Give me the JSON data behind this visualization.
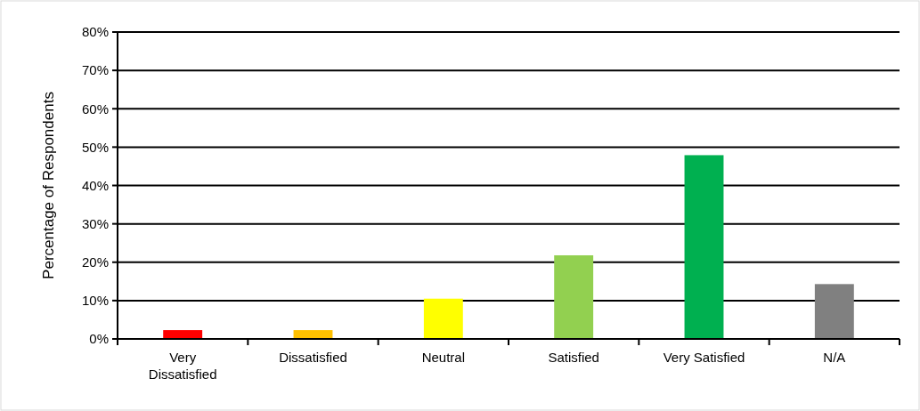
{
  "chart_data": {
    "type": "bar",
    "ylabel": "Percentage of Respondents",
    "categories": [
      "Very Dissatisfied",
      "Dissatisfied",
      "Neutral",
      "Satisfied",
      "Very Satisfied",
      "N/A"
    ],
    "values": [
      2.3,
      2.3,
      10.5,
      21.8,
      47.9,
      14.3
    ],
    "colors": [
      "#ff0000",
      "#ffc000",
      "#ffff00",
      "#92d050",
      "#00b050",
      "#808080"
    ],
    "ylim": [
      0,
      80
    ],
    "yticks": [
      {
        "value": 0,
        "label": "0%"
      },
      {
        "value": 10,
        "label": "10%"
      },
      {
        "value": 20,
        "label": "20%"
      },
      {
        "value": 30,
        "label": "30%"
      },
      {
        "value": 40,
        "label": "40%"
      },
      {
        "value": 50,
        "label": "50%"
      },
      {
        "value": 60,
        "label": "60%"
      },
      {
        "value": 70,
        "label": "70%"
      },
      {
        "value": 80,
        "label": "80%"
      }
    ],
    "grid": "y"
  }
}
